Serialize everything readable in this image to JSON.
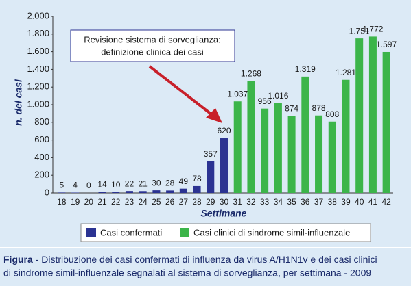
{
  "chart_data": {
    "type": "bar",
    "categories": [
      "18",
      "19",
      "20",
      "21",
      "22",
      "23",
      "24",
      "25",
      "26",
      "27",
      "28",
      "29",
      "30",
      "31",
      "32",
      "33",
      "34",
      "35",
      "36",
      "37",
      "38",
      "39",
      "40",
      "41",
      "42"
    ],
    "series": [
      {
        "name": "Casi confermati",
        "color": "#2b3392",
        "values": [
          5,
          4,
          0,
          14,
          10,
          22,
          21,
          30,
          28,
          49,
          78,
          357,
          620,
          null,
          null,
          null,
          null,
          null,
          null,
          null,
          null,
          null,
          null,
          null,
          null
        ]
      },
      {
        "name": "Casi clinici di sindrome simil-influenzale",
        "color": "#3cb54a",
        "values": [
          null,
          null,
          null,
          null,
          null,
          null,
          null,
          null,
          null,
          null,
          null,
          null,
          null,
          1037,
          1268,
          956,
          1016,
          874,
          1319,
          878,
          808,
          1281,
          1751,
          1772,
          1597
        ],
        "value_labels": [
          null,
          null,
          null,
          null,
          null,
          null,
          null,
          null,
          null,
          null,
          null,
          null,
          null,
          "1.037",
          "1.268",
          "956",
          "1.016",
          "874",
          "1.319",
          "878",
          "808",
          "1.281",
          "1.751",
          "1.772",
          "1.597"
        ]
      }
    ],
    "ylim": [
      0,
      2000
    ],
    "yticks": [
      0,
      200,
      400,
      600,
      800,
      {
        "value": 1000,
        "label": "1.000"
      },
      {
        "value": 1200,
        "label": "1.200"
      },
      {
        "value": 1400,
        "label": "1.400"
      },
      {
        "value": 1600,
        "label": "1.600"
      },
      {
        "value": 1800,
        "label": "1.800"
      },
      {
        "value": 2000,
        "label": "2.000"
      }
    ],
    "xlabel": "Settimane",
    "ylabel": "n. dei casi",
    "annotation": [
      "Revisione sistema di sorveglianza:",
      "definizione clinica dei casi"
    ],
    "caption_label": "Figura",
    "caption": [
      " - Distribuzione dei casi confermati di influenza da virus A/H1N1v e dei casi clinici",
      "di sindrome simil-influenzale segnalati al sistema di sorveglianza, per settimana - 2009"
    ]
  }
}
